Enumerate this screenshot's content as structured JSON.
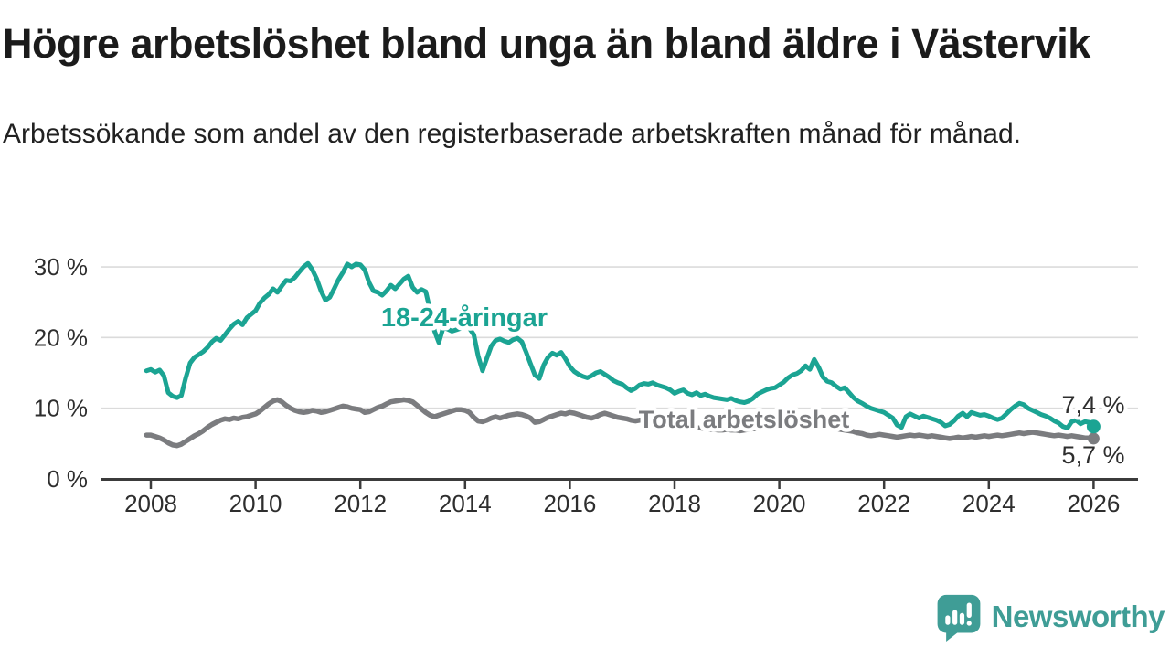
{
  "header": {
    "title": "Högre arbetslöshet bland unga än bland äldre i Västervik",
    "subtitle": "Arbetssökande som andel av den registerbaserade arbetskraften månad för månad."
  },
  "branding": {
    "name": "Newsworthy",
    "color": "#3f9d96"
  },
  "chart_data": {
    "type": "line",
    "unit": "%",
    "frequency": "monthly",
    "start": {
      "year": 2007,
      "month": 12
    },
    "grid": "horizontal",
    "legend": "inline-labels",
    "x_axis": {
      "tick_years": [
        2008,
        2010,
        2012,
        2014,
        2016,
        2018,
        2020,
        2022,
        2024,
        2026
      ],
      "tick_labels": [
        "2008",
        "2010",
        "2012",
        "2014",
        "2016",
        "2018",
        "2020",
        "2022",
        "2024",
        "2026"
      ]
    },
    "y_axis": {
      "tick_values": [
        0,
        10,
        20,
        30
      ],
      "tick_labels": [
        "0 %",
        "10 %",
        "20 %",
        "30 %"
      ],
      "ylim": [
        0,
        33
      ]
    },
    "series": [
      {
        "name": "18-24-åringar",
        "color": "#1ba493",
        "latest_label": "7,4 %",
        "latest_value": 7.4,
        "values": [
          15.3,
          15.5,
          15.1,
          15.4,
          14.6,
          12.2,
          11.7,
          11.5,
          11.8,
          14.3,
          16.4,
          17.2,
          17.6,
          18.0,
          18.6,
          19.4,
          19.9,
          19.6,
          20.4,
          21.2,
          21.9,
          22.3,
          21.8,
          22.8,
          23.3,
          23.8,
          24.9,
          25.6,
          26.1,
          26.9,
          26.4,
          27.3,
          28.1,
          28.0,
          28.5,
          29.3,
          30.0,
          30.5,
          29.6,
          28.3,
          26.6,
          25.3,
          25.7,
          26.9,
          28.2,
          29.2,
          30.4,
          30.0,
          30.4,
          30.3,
          29.6,
          27.8,
          26.6,
          26.4,
          26.0,
          26.6,
          27.4,
          26.9,
          27.6,
          28.3,
          28.7,
          27.1,
          26.4,
          26.8,
          26.5,
          23.8,
          20.9,
          19.3,
          21.4,
          21.2,
          20.9,
          21.1,
          21.3,
          21.6,
          21.3,
          20.4,
          17.4,
          15.3,
          17.1,
          18.8,
          19.6,
          19.8,
          19.5,
          19.3,
          19.7,
          19.9,
          19.4,
          17.9,
          16.3,
          14.7,
          14.2,
          16.1,
          17.2,
          17.8,
          17.5,
          17.9,
          17.0,
          15.9,
          15.2,
          14.8,
          14.5,
          14.3,
          14.6,
          15.0,
          15.2,
          14.8,
          14.4,
          13.9,
          13.6,
          13.4,
          12.9,
          12.5,
          12.8,
          13.3,
          13.5,
          13.4,
          13.6,
          13.3,
          13.1,
          12.9,
          12.6,
          12.1,
          12.4,
          12.6,
          12.1,
          11.9,
          12.2,
          11.8,
          12.0,
          11.7,
          11.5,
          11.4,
          11.3,
          11.2,
          11.4,
          11.1,
          10.9,
          10.8,
          11.0,
          11.4,
          12.0,
          12.3,
          12.6,
          12.8,
          12.9,
          13.3,
          13.7,
          14.3,
          14.7,
          14.9,
          15.3,
          16.0,
          15.5,
          16.9,
          15.8,
          14.4,
          13.8,
          13.6,
          13.1,
          12.7,
          12.9,
          12.2,
          11.5,
          11.0,
          10.7,
          10.3,
          10.0,
          9.8,
          9.6,
          9.4,
          9.0,
          8.6,
          7.6,
          7.3,
          8.8,
          9.2,
          8.9,
          8.6,
          8.9,
          8.7,
          8.5,
          8.3,
          8.0,
          7.5,
          7.7,
          8.2,
          8.9,
          9.3,
          8.8,
          9.4,
          9.2,
          9.0,
          9.1,
          8.9,
          8.6,
          8.4,
          8.6,
          9.2,
          9.8,
          10.3,
          10.7,
          10.5,
          10.0,
          9.7,
          9.4,
          9.1,
          8.9,
          8.6,
          8.2,
          7.9,
          7.4,
          7.2,
          8.1,
          8.3,
          7.8,
          8.1,
          8.0,
          7.4
        ]
      },
      {
        "name": "Total arbetslöshet",
        "color": "#7b7c7f",
        "latest_label": "5,7 %",
        "latest_value": 5.7,
        "values": [
          6.2,
          6.2,
          6.0,
          5.8,
          5.5,
          5.1,
          4.8,
          4.7,
          4.9,
          5.3,
          5.7,
          6.1,
          6.4,
          6.8,
          7.3,
          7.7,
          8.0,
          8.3,
          8.5,
          8.4,
          8.6,
          8.5,
          8.7,
          8.8,
          9.0,
          9.2,
          9.6,
          10.1,
          10.6,
          11.0,
          11.2,
          10.9,
          10.4,
          10.0,
          9.7,
          9.5,
          9.4,
          9.5,
          9.7,
          9.6,
          9.4,
          9.5,
          9.7,
          9.9,
          10.1,
          10.3,
          10.2,
          10.0,
          9.9,
          9.8,
          9.4,
          9.5,
          9.8,
          10.1,
          10.3,
          10.6,
          10.9,
          11.0,
          11.1,
          11.2,
          11.1,
          10.9,
          10.4,
          9.9,
          9.4,
          9.0,
          8.8,
          9.0,
          9.2,
          9.4,
          9.6,
          9.8,
          9.8,
          9.7,
          9.4,
          8.7,
          8.2,
          8.1,
          8.3,
          8.6,
          8.8,
          8.6,
          8.8,
          9.0,
          9.1,
          9.2,
          9.1,
          8.9,
          8.6,
          8.0,
          8.1,
          8.4,
          8.7,
          8.9,
          9.1,
          9.3,
          9.2,
          9.4,
          9.3,
          9.1,
          8.9,
          8.7,
          8.6,
          8.8,
          9.1,
          9.3,
          9.1,
          8.9,
          8.7,
          8.6,
          8.5,
          8.3,
          8.2,
          8.3,
          8.5,
          8.4,
          8.2,
          8.1,
          8.0,
          7.9,
          7.8,
          7.7,
          7.6,
          7.5,
          7.4,
          7.3,
          7.2,
          7.2,
          7.1,
          7.0,
          7.0,
          6.9,
          6.9,
          7.0,
          6.9,
          6.9,
          6.8,
          6.9,
          7.0,
          7.1,
          7.1,
          7.2,
          7.3,
          7.4,
          7.5,
          7.6,
          7.8,
          8.0,
          8.3,
          8.4,
          8.5,
          8.4,
          8.3,
          8.1,
          7.9,
          7.7,
          7.5,
          7.3,
          7.1,
          7.0,
          6.9,
          6.8,
          6.7,
          6.5,
          6.4,
          6.2,
          6.1,
          6.2,
          6.3,
          6.2,
          6.1,
          6.0,
          5.9,
          6.0,
          6.1,
          6.2,
          6.1,
          6.2,
          6.1,
          6.0,
          6.1,
          6.0,
          5.9,
          5.8,
          5.7,
          5.8,
          5.9,
          5.8,
          5.9,
          6.0,
          5.9,
          6.0,
          6.1,
          6.0,
          6.1,
          6.2,
          6.1,
          6.2,
          6.3,
          6.4,
          6.5,
          6.4,
          6.5,
          6.6,
          6.5,
          6.4,
          6.3,
          6.2,
          6.1,
          6.2,
          6.1,
          6.0,
          6.1,
          6.0,
          5.9,
          5.8,
          5.8,
          5.7
        ]
      }
    ]
  }
}
